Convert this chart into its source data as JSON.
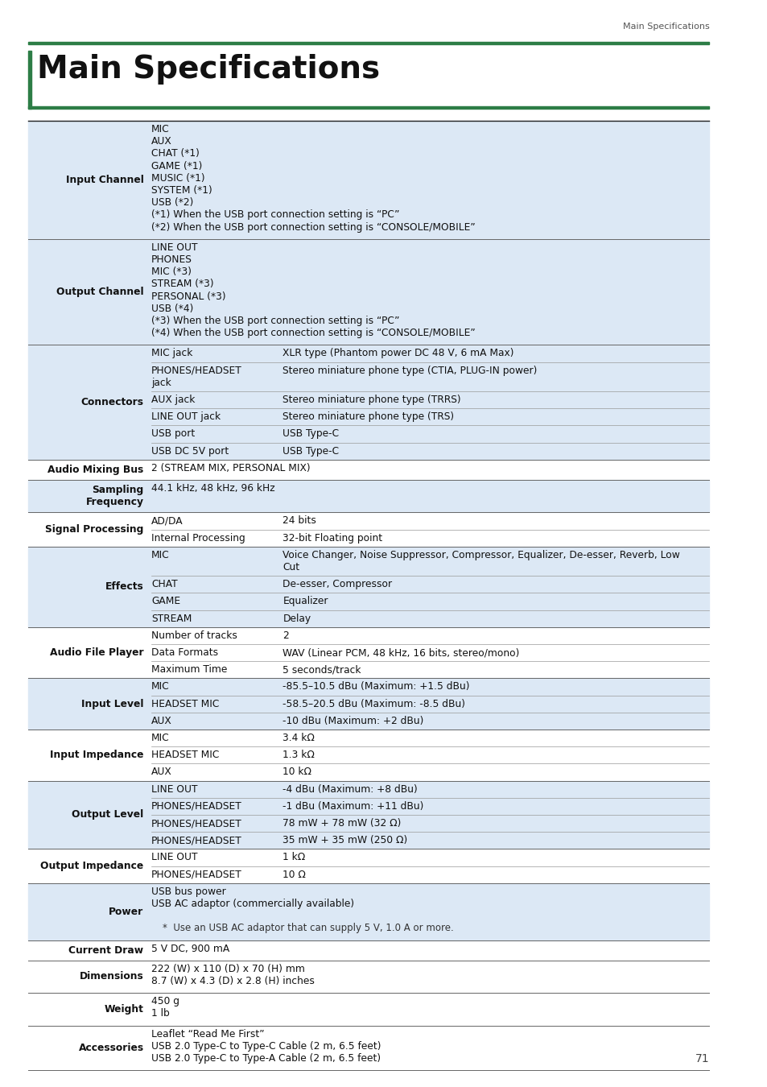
{
  "page_header": "Main Specifications",
  "title": "Main Specifications",
  "page_number": "71",
  "header_bar_color": "#2d7d46",
  "title_left_bar_color": "#2d7d46",
  "bg_color": "#ffffff",
  "row_alt_color": "#dce8f5",
  "table_rows": [
    {
      "label": "Input Channel",
      "col3": "MIC\nAUX\nCHAT (*1)\nGAME (*1)\nMUSIC (*1)\nSYSTEM (*1)\nUSB (*2)\n(*1) When the USB port connection setting is “PC”\n(*2) When the USB port connection setting is “CONSOLE/MOBILE”",
      "label_bold": true,
      "shade": true,
      "sub_rows": null
    },
    {
      "label": "Output Channel",
      "col3": "LINE OUT\nPHONES\nMIC (*3)\nSTREAM (*3)\nPERSONAL (*3)\nUSB (*4)\n(*3) When the USB port connection setting is “PC”\n(*4) When the USB port connection setting is “CONSOLE/MOBILE”",
      "label_bold": true,
      "shade": true,
      "sub_rows": null
    },
    {
      "label": "Connectors",
      "col3": "",
      "label_bold": true,
      "shade": true,
      "sub_rows": [
        {
          "col2": "MIC jack",
          "col3": "XLR type (Phantom power DC 48 V, 6 mA Max)"
        },
        {
          "col2": "PHONES/HEADSET\njack",
          "col3": "Stereo miniature phone type (CTIA, PLUG-IN power)"
        },
        {
          "col2": "AUX jack",
          "col3": "Stereo miniature phone type (TRRS)"
        },
        {
          "col2": "LINE OUT jack",
          "col3": "Stereo miniature phone type (TRS)"
        },
        {
          "col2": "USB port",
          "col3": "USB Type-C"
        },
        {
          "col2": "USB DC 5V port",
          "col3": "USB Type-C"
        }
      ]
    },
    {
      "label": "Audio Mixing Bus",
      "col3": "2 (STREAM MIX, PERSONAL MIX)",
      "label_bold": true,
      "shade": false,
      "sub_rows": null
    },
    {
      "label": "Sampling\nFrequency",
      "col3": "44.1 kHz, 48 kHz, 96 kHz",
      "label_bold": true,
      "shade": true,
      "sub_rows": null
    },
    {
      "label": "Signal Processing",
      "col3": "",
      "label_bold": true,
      "shade": false,
      "sub_rows": [
        {
          "col2": "AD/DA",
          "col3": "24 bits"
        },
        {
          "col2": "Internal Processing",
          "col3": "32-bit Floating point"
        }
      ]
    },
    {
      "label": "Effects",
      "col3": "",
      "label_bold": true,
      "shade": true,
      "sub_rows": [
        {
          "col2": "MIC",
          "col3": "Voice Changer, Noise Suppressor, Compressor, Equalizer, De-esser, Reverb, Low\nCut"
        },
        {
          "col2": "CHAT",
          "col3": "De-esser, Compressor"
        },
        {
          "col2": "GAME",
          "col3": "Equalizer"
        },
        {
          "col2": "STREAM",
          "col3": "Delay"
        }
      ]
    },
    {
      "label": "Audio File Player",
      "col3": "",
      "label_bold": true,
      "shade": false,
      "sub_rows": [
        {
          "col2": "Number of tracks",
          "col3": "2"
        },
        {
          "col2": "Data Formats",
          "col3": "WAV (Linear PCM, 48 kHz, 16 bits, stereo/mono)"
        },
        {
          "col2": "Maximum Time",
          "col3": "5 seconds/track"
        }
      ]
    },
    {
      "label": "Input Level",
      "col3": "",
      "label_bold": true,
      "shade": true,
      "sub_rows": [
        {
          "col2": "MIC",
          "col3": "-85.5–10.5 dBu (Maximum: +1.5 dBu)"
        },
        {
          "col2": "HEADSET MIC",
          "col3": "-58.5–20.5 dBu (Maximum: -8.5 dBu)"
        },
        {
          "col2": "AUX",
          "col3": "-10 dBu (Maximum: +2 dBu)"
        }
      ]
    },
    {
      "label": "Input Impedance",
      "col3": "",
      "label_bold": true,
      "shade": false,
      "sub_rows": [
        {
          "col2": "MIC",
          "col3": "3.4 kΩ"
        },
        {
          "col2": "HEADSET MIC",
          "col3": "1.3 kΩ"
        },
        {
          "col2": "AUX",
          "col3": "10 kΩ"
        }
      ]
    },
    {
      "label": "Output Level",
      "col3": "",
      "label_bold": true,
      "shade": true,
      "sub_rows": [
        {
          "col2": "LINE OUT",
          "col3": "-4 dBu (Maximum: +8 dBu)"
        },
        {
          "col2": "PHONES/HEADSET",
          "col3": "-1 dBu (Maximum: +11 dBu)"
        },
        {
          "col2": "PHONES/HEADSET",
          "col3": "78 mW + 78 mW (32 Ω)"
        },
        {
          "col2": "PHONES/HEADSET",
          "col3": "35 mW + 35 mW (250 Ω)"
        }
      ]
    },
    {
      "label": "Output Impedance",
      "col3": "",
      "label_bold": true,
      "shade": false,
      "sub_rows": [
        {
          "col2": "LINE OUT",
          "col3": "1 kΩ"
        },
        {
          "col2": "PHONES/HEADSET",
          "col3": "10 Ω"
        }
      ]
    },
    {
      "label": "Power",
      "col3": "USB bus power\nUSB AC adaptor (commercially available)\n\n*  Use an USB AC adaptor that can supply 5 V, 1.0 A or more.",
      "label_bold": true,
      "shade": true,
      "sub_rows": null
    },
    {
      "label": "Current Draw",
      "col3": "5 V DC, 900 mA",
      "label_bold": true,
      "shade": false,
      "sub_rows": null
    },
    {
      "label": "Dimensions",
      "col3": "222 (W) x 110 (D) x 70 (H) mm\n8.7 (W) x 4.3 (D) x 2.8 (H) inches",
      "label_bold": true,
      "shade": false,
      "sub_rows": null
    },
    {
      "label": "Weight",
      "col3": "450 g\n1 lb",
      "label_bold": true,
      "shade": false,
      "sub_rows": null
    },
    {
      "label": "Accessories",
      "col3": "Leaflet “Read Me First”\nUSB 2.0 Type-C to Type-C Cable (2 m, 6.5 feet)\nUSB 2.0 Type-C to Type-A Cable (2 m, 6.5 feet)",
      "label_bold": true,
      "shade": false,
      "sub_rows": null
    }
  ]
}
